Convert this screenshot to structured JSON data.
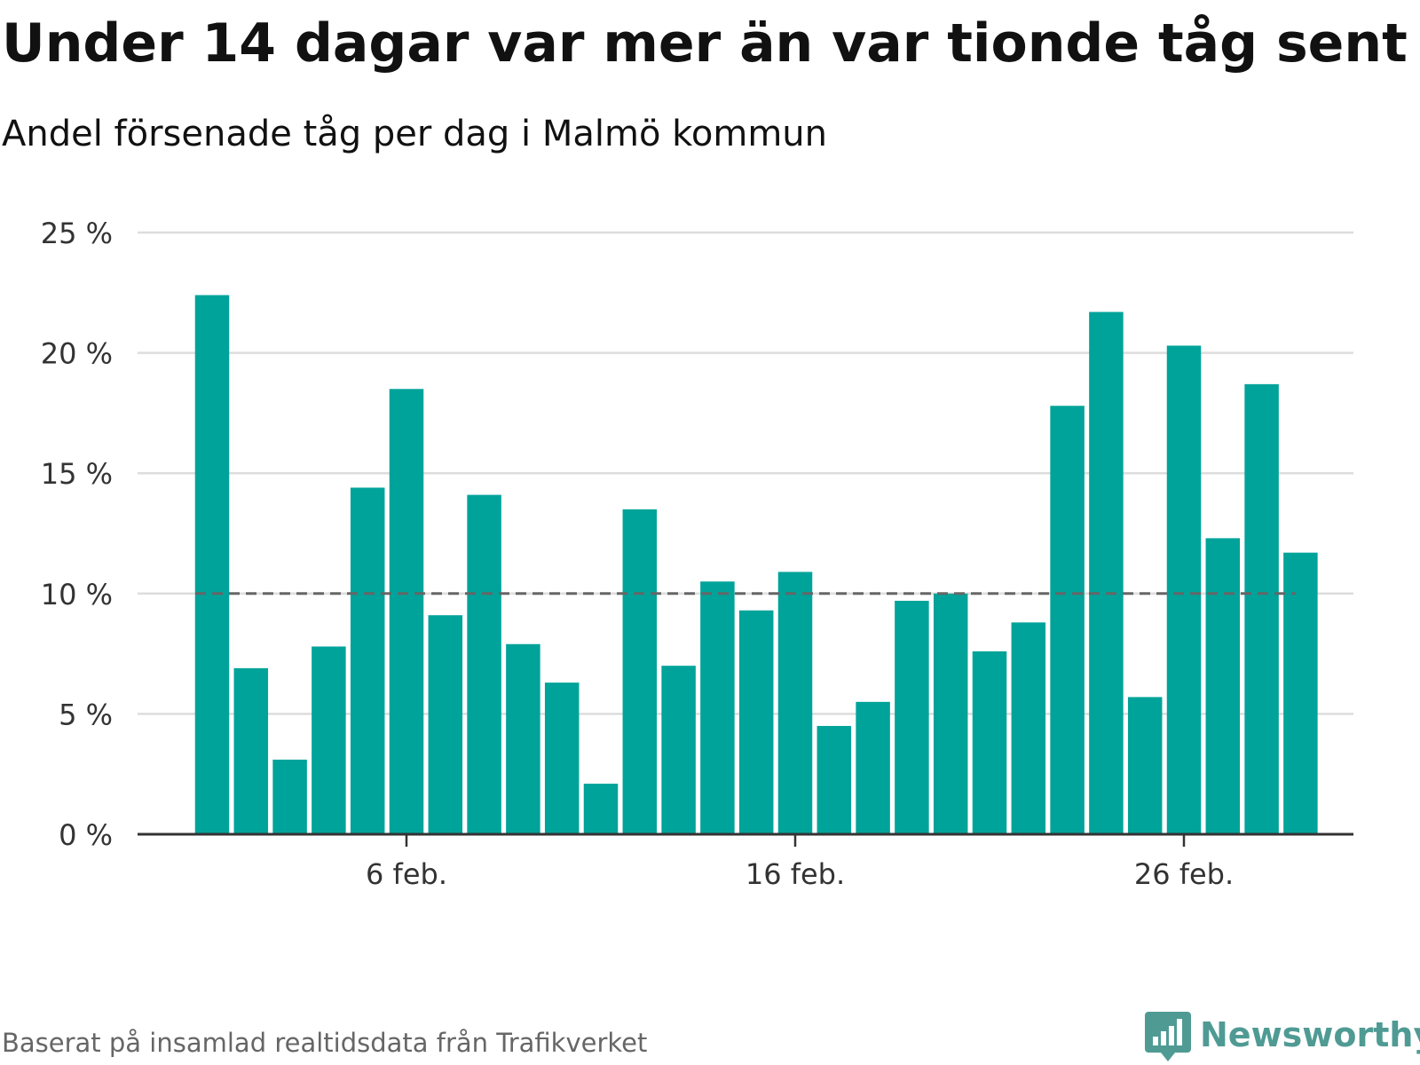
{
  "title": "Under 14 dagar var mer än var tionde tåg sent",
  "subtitle": "Andel försenade tåg per dag i Malmö kommun",
  "source": "Baserat på insamlad realtidsdata från Trafikverket",
  "brand": "Newsworthy",
  "colors": {
    "bar": "#00a39a",
    "grid": "#dddddd",
    "axis": "#333333",
    "reference": "#666666",
    "brand": "#4f9b94"
  },
  "chart_data": {
    "type": "bar",
    "x_tick_labels": [
      "6 feb.",
      "16 feb.",
      "26 feb."
    ],
    "y_tick_labels": [
      "0 %",
      "5 %",
      "10 %",
      "15 %",
      "20 %",
      "25 %"
    ],
    "ylim": [
      0,
      25
    ],
    "y_ticks": [
      0,
      5,
      10,
      15,
      20,
      25
    ],
    "x_ticks": [
      6,
      16,
      26
    ],
    "x_label_values": [
      "6 feb.",
      "16 feb.",
      "26 feb."
    ],
    "days": [
      1,
      2,
      3,
      4,
      5,
      6,
      7,
      8,
      9,
      10,
      11,
      12,
      13,
      14,
      15,
      16,
      17,
      18,
      19,
      20,
      21,
      22,
      23,
      24,
      25,
      26,
      27,
      28,
      29
    ],
    "values": [
      22.4,
      6.9,
      3.1,
      7.8,
      14.4,
      18.5,
      9.1,
      14.1,
      7.9,
      6.3,
      2.1,
      13.5,
      7.0,
      10.5,
      9.3,
      10.9,
      4.5,
      5.5,
      9.7,
      10.0,
      7.6,
      8.8,
      17.8,
      21.7,
      5.7,
      20.3,
      12.3,
      18.7,
      11.7
    ],
    "reference_line": 10,
    "grid": true,
    "legend": "none"
  }
}
